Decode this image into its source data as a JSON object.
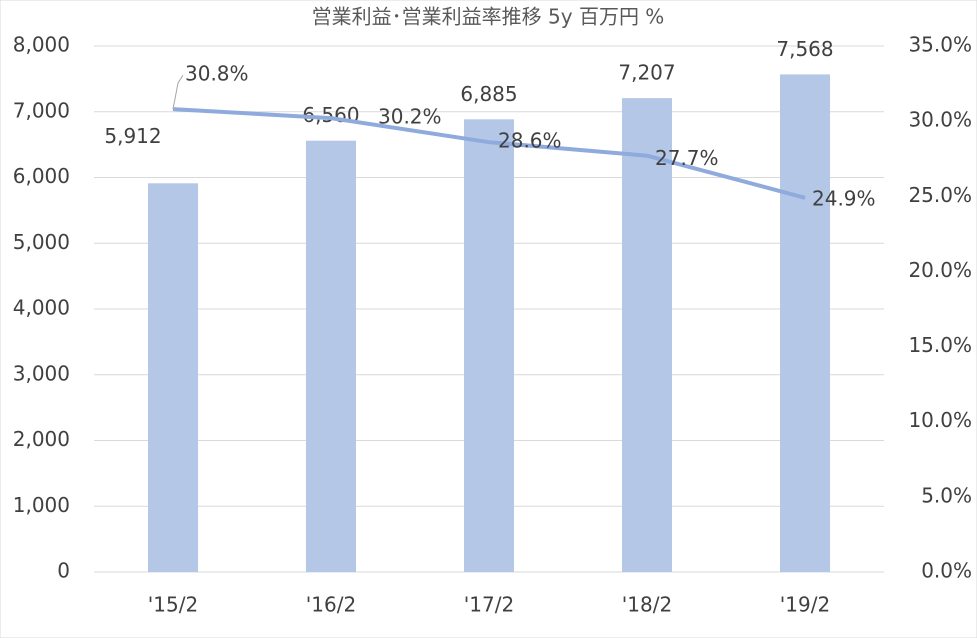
{
  "chart_data": {
    "type": "bar",
    "title": "営業利益･営業利益率推移 5y 百万円 %",
    "categories": [
      "'15/2",
      "'16/2",
      "'17/2",
      "'18/2",
      "'19/2"
    ],
    "series": [
      {
        "name": "営業利益",
        "type": "bar",
        "color": "#b4c7e7",
        "values": [
          5912,
          6560,
          6885,
          7207,
          7568
        ],
        "value_labels": [
          "5,912",
          "6,560",
          "6,885",
          "7,207",
          "7,568"
        ]
      },
      {
        "name": "営業利益率",
        "type": "line",
        "axis": "y2",
        "color": "#8faadc",
        "values": [
          30.8,
          30.2,
          28.6,
          27.7,
          24.9
        ],
        "value_labels": [
          "30.8%",
          "30.2%",
          "28.6%",
          "27.7%",
          "24.9%"
        ]
      }
    ],
    "ylim": [
      0,
      8000
    ],
    "yticks": [
      0,
      {
        "value": 1000,
        "label": "1,000"
      },
      {
        "value": 2000,
        "label": "2,000"
      },
      {
        "value": 3000,
        "label": "3,000"
      },
      {
        "value": 4000,
        "label": "4,000"
      },
      {
        "value": 5000,
        "label": "5,000"
      },
      {
        "value": 6000,
        "label": "6,000"
      },
      {
        "value": 7000,
        "label": "7,000"
      },
      {
        "value": 8000,
        "label": "8,000"
      }
    ],
    "y2lim": [
      0,
      35
    ],
    "y2ticks": [
      {
        "value": 0,
        "label": "0.0%"
      },
      {
        "value": 5,
        "label": "5.0%"
      },
      {
        "value": 10,
        "label": "10.0%"
      },
      {
        "value": 15,
        "label": "15.0%"
      },
      {
        "value": 20,
        "label": "20.0%"
      },
      {
        "value": 25,
        "label": "25.0%"
      },
      {
        "value": 30,
        "label": "30.0%"
      },
      {
        "value": 35,
        "label": "35.0%"
      }
    ],
    "grid": true
  }
}
